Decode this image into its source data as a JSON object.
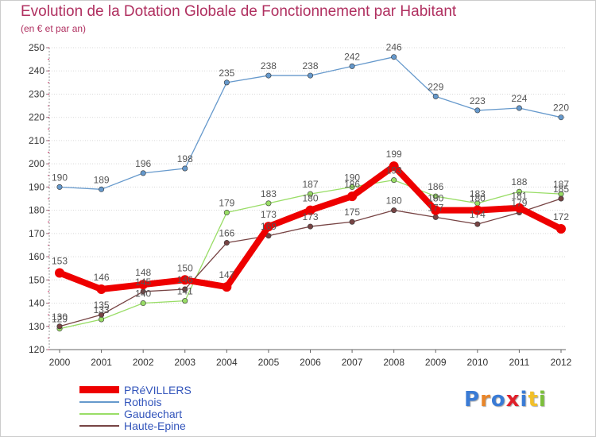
{
  "title": "Evolution de la Dotation Globale de Fonctionnement par Habitant",
  "subtitle": "(en € et par an)",
  "logo": {
    "text": "Proxiti",
    "colors": [
      "#3a7bd5",
      "#e8862a",
      "#3a7bd5",
      "#e0202a",
      "#3a7bd5",
      "#f2c029",
      "#7bbf3a"
    ]
  },
  "chart_data": {
    "type": "line",
    "x": [
      2000,
      2001,
      2002,
      2003,
      2004,
      2005,
      2006,
      2007,
      2008,
      2009,
      2010,
      2011,
      2012
    ],
    "ylim": [
      120,
      250
    ],
    "yticks": [
      120,
      130,
      140,
      150,
      160,
      170,
      180,
      190,
      200,
      210,
      220,
      230,
      240,
      250
    ],
    "grid": "horizontal dotted",
    "series": [
      {
        "name": "PRéVILLERS",
        "color": "#ee0000",
        "values": [
          153,
          146,
          148,
          150,
          147,
          173,
          180,
          186,
          199,
          180,
          180,
          181,
          172
        ]
      },
      {
        "name": "Rothois",
        "color": "#6699cc",
        "values": [
          190,
          189,
          196,
          198,
          235,
          238,
          238,
          242,
          246,
          229,
          223,
          224,
          220
        ]
      },
      {
        "name": "Gaudechart",
        "color": "#99dd66",
        "values": [
          129,
          133,
          140,
          141,
          179,
          183,
          187,
          190,
          193,
          186,
          183,
          188,
          187
        ]
      },
      {
        "name": "Haute-Epine",
        "color": "#774444",
        "values": [
          130,
          135,
          145,
          146,
          166,
          169,
          173,
          175,
          180,
          177,
          174,
          179,
          185
        ]
      }
    ],
    "point_labels": [
      [
        153,
        146,
        148,
        150,
        147,
        173,
        180,
        186,
        199,
        180,
        180,
        181,
        172
      ],
      [
        190,
        189,
        196,
        198,
        235,
        238,
        238,
        242,
        246,
        229,
        223,
        224,
        220
      ],
      [
        129,
        133,
        140,
        141,
        179,
        183,
        187,
        190,
        193,
        186,
        183,
        188,
        187
      ],
      [
        130,
        135,
        145,
        146,
        166,
        169,
        173,
        175,
        180,
        177,
        174,
        179,
        185
      ]
    ]
  }
}
